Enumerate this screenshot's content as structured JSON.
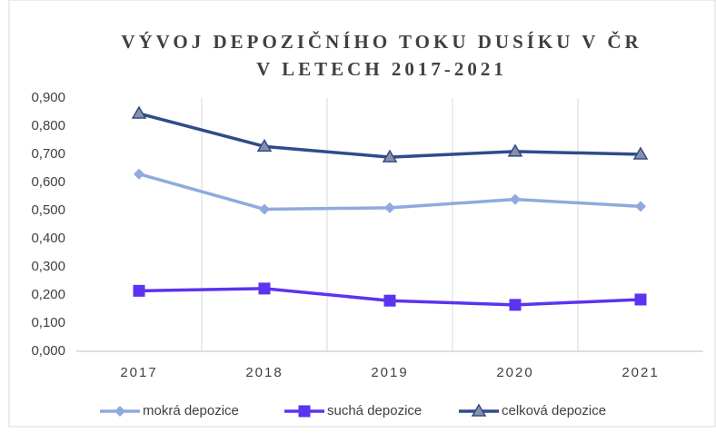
{
  "chart_data": {
    "type": "line",
    "title": [
      "VÝVOJ DEPOZIČNÍHO TOKU DUSÍKU V ČR",
      "V LETECH 2017-2021"
    ],
    "categories": [
      "2017",
      "2018",
      "2019",
      "2020",
      "2021"
    ],
    "series": [
      {
        "name": "mokrá depozice",
        "color": "#8faadc",
        "marker": "diamond",
        "values": [
          0.63,
          0.505,
          0.51,
          0.54,
          0.515
        ]
      },
      {
        "name": "suchá depozice",
        "color": "#5b33f0",
        "marker": "square",
        "values": [
          0.215,
          0.223,
          0.18,
          0.165,
          0.184
        ]
      },
      {
        "name": "celková depozice",
        "color": "#2f4b8a",
        "marker": "triangle",
        "values": [
          0.845,
          0.728,
          0.69,
          0.71,
          0.7
        ]
      }
    ],
    "ylim": [
      0,
      0.9
    ],
    "yticks": [
      {
        "value": 0,
        "label": "0,000"
      },
      {
        "value": 0.1,
        "label": "0,100"
      },
      {
        "value": 0.2,
        "label": "0,200"
      },
      {
        "value": 0.3,
        "label": "0,300"
      },
      {
        "value": 0.4,
        "label": "0,400"
      },
      {
        "value": 0.5,
        "label": "0,500"
      },
      {
        "value": 0.6,
        "label": "0,600"
      },
      {
        "value": 0.7,
        "label": "0,700"
      },
      {
        "value": 0.8,
        "label": "0,800"
      },
      {
        "value": 0.9,
        "label": "0,900"
      }
    ],
    "legend": "bottom"
  }
}
